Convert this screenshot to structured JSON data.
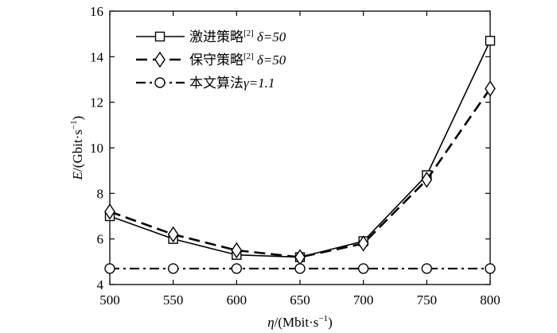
{
  "chart_data": {
    "type": "line",
    "title": "",
    "xlabel": {
      "var": "η",
      "rest": "/(Mbit·s",
      "sup": "−1",
      "close": ")"
    },
    "ylabel": {
      "var": "E",
      "rest": "/(Gbit·s",
      "sup": "−1",
      "close": ")"
    },
    "x": [
      500,
      550,
      600,
      650,
      700,
      750,
      800
    ],
    "xlim": [
      500,
      800
    ],
    "ylim": [
      4,
      16
    ],
    "xticks": [
      "500",
      "550",
      "600",
      "650",
      "700",
      "750",
      "800"
    ],
    "yticks": [
      "4",
      "6",
      "8",
      "10",
      "12",
      "14",
      "16"
    ],
    "grid": false,
    "legend_position": "top-left",
    "series": [
      {
        "name": "激进策略",
        "ref": "[2]",
        "param": "δ=50",
        "marker": "square",
        "line": "solid",
        "values": [
          7.0,
          6.0,
          5.3,
          5.2,
          5.9,
          8.8,
          14.7
        ]
      },
      {
        "name": "保守策略",
        "ref": "[2]",
        "param": "δ=50",
        "marker": "diamond",
        "line": "dashed",
        "values": [
          7.2,
          6.2,
          5.5,
          5.2,
          5.8,
          8.6,
          12.6
        ]
      },
      {
        "name": "本文算法",
        "ref": "",
        "param": "γ=1.1",
        "marker": "circle",
        "line": "dashdot",
        "values": [
          4.7,
          4.7,
          4.7,
          4.7,
          4.7,
          4.7,
          4.7
        ]
      }
    ]
  }
}
